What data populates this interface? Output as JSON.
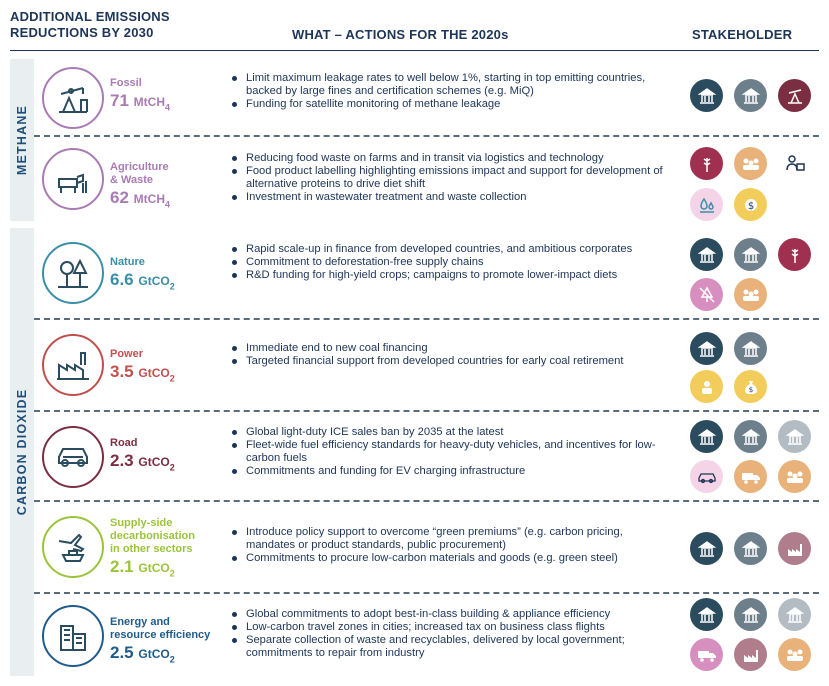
{
  "header": {
    "left_line1": "ADDITIONAL EMISSIONS",
    "left_line2": "REDUCTIONS BY 2030",
    "middle": "WHAT – ACTIONS FOR THE 2020s",
    "right": "STAKEHOLDER"
  },
  "sections": {
    "methane": "METHANE",
    "co2": "CARBON DIOXIDE"
  },
  "colors": {
    "methane_accent": "#a97bb5",
    "nature": "#3a8ea8",
    "power": "#c0504d",
    "road": "#7b2e42",
    "supply": "#9cc43b",
    "energy": "#1f5c8b",
    "gov_dark": "#2b4c5e",
    "gov_grey": "#6e7f8c",
    "industry": "#7b2e42",
    "agri": "#a0304f",
    "people": "#e8b27a",
    "finance": "#f2cd5c",
    "pink": "#e2a5c9"
  },
  "rows": [
    {
      "name": "Fossil",
      "value": "71",
      "unit": "MtCH",
      "unit_sub": "4",
      "icon": "oil-pump-icon",
      "actions": [
        "Limit maximum leakage rates to well below 1%, starting in top emitting countries, backed by large fines and certification schemes (e.g. MiQ)",
        "Funding for satellite monitoring of methane leakage"
      ],
      "stakeholders": [
        "government-icon",
        "government-icon",
        "oil-industry-icon"
      ]
    },
    {
      "name_line1": "Agriculture",
      "name_line2": "& Waste",
      "value": "62",
      "unit": "MtCH",
      "unit_sub": "4",
      "icon": "cow-farm-icon",
      "actions": [
        "Reducing food waste on farms and in transit via logistics and technology",
        "Food product labelling highlighting emissions impact and support for development of alternative proteins to drive diet shift",
        "Investment in wastewater treatment and waste collection"
      ],
      "stakeholders": [
        "wheat-icon",
        "consumers-icon",
        "retailer-icon",
        "water-icon",
        "finance-icon"
      ]
    },
    {
      "name": "Nature",
      "value": "6.6",
      "unit": "GtCO",
      "unit_sub": "2",
      "icon": "trees-icon",
      "actions": [
        "Rapid scale-up in finance from developed countries, and ambitious corporates",
        "Commitment to deforestation-free supply chains",
        "R&D funding for high-yield crops; campaigns to promote lower-impact diets"
      ],
      "stakeholders": [
        "government-icon",
        "government-icon",
        "wheat-icon",
        "deforestation-icon",
        "consumers-icon"
      ]
    },
    {
      "name": "Power",
      "value": "3.5",
      "unit": "GtCO",
      "unit_sub": "2",
      "icon": "factory-icon",
      "actions": [
        "Immediate end to new coal financing",
        "Targeted financial support from developed countries for early coal retirement"
      ],
      "stakeholders": [
        "government-icon",
        "government-icon",
        "investor-icon",
        "money-bag-icon"
      ]
    },
    {
      "name": "Road",
      "value": "2.3",
      "unit": "GtCO",
      "unit_sub": "2",
      "icon": "car-icon",
      "actions": [
        "Global light-duty ICE sales ban by 2035 at the latest",
        "Fleet-wide fuel efficiency standards for heavy-duty vehicles, and incentives for low-carbon fuels",
        "Commitments and funding for EV charging infrastructure"
      ],
      "stakeholders": [
        "government-icon",
        "government-icon",
        "government-icon",
        "car-icon",
        "truck-icon",
        "consumers-icon"
      ]
    },
    {
      "name_line1": "Supply-side",
      "name_line2": "decarbonisation",
      "name_line3": "in other sectors",
      "value": "2.1",
      "unit": "GtCO",
      "unit_sub": "2",
      "icon": "plane-ship-icon",
      "actions": [
        "Introduce policy support to overcome “green premiums” (e.g. carbon pricing, mandates or product standards, public procurement)",
        "Commitments to procure low-carbon materials and goods (e.g. green steel)"
      ],
      "stakeholders": [
        "government-icon",
        "government-icon",
        "industry-icon"
      ]
    },
    {
      "name_line1": "Energy and",
      "name_line2": "resource efficiency",
      "value": "2.5",
      "unit": "GtCO",
      "unit_sub": "2",
      "icon": "building-icon",
      "actions": [
        "Global commitments to adopt best-in-class building & appliance efficiency",
        "Low-carbon travel zones in cities; increased tax on business class flights",
        "Separate collection of waste and recyclables, delivered by local government; commitments to repair from industry"
      ],
      "stakeholders": [
        "government-icon",
        "government-icon",
        "government-icon",
        "truck-icon",
        "industry-icon",
        "consumers-icon"
      ]
    }
  ]
}
